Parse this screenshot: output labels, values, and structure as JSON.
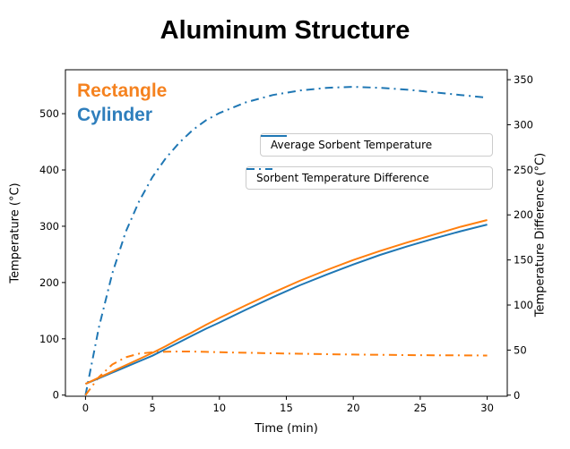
{
  "window": {
    "title": "Aluminum Structure"
  },
  "annotations": {
    "rectangle": {
      "label": "Rectangle",
      "color": "#f5821f"
    },
    "cylinder": {
      "label": "Cylinder",
      "color": "#2e7ebc"
    }
  },
  "legend": {
    "average": {
      "label": "Average Sorbent Temperature",
      "line_style": "solid",
      "line_color": "#1f77b4"
    },
    "difference": {
      "label": "Sorbent Temperature Difference",
      "line_style": "dashdot",
      "line_color": "#1f77b4"
    }
  },
  "chart_data": {
    "type": "line",
    "title": "Aluminum Structure",
    "xlabel": "Time (min)",
    "ylabel_left": "Temperature (°C)",
    "ylabel_right": "Temperature Difference (°C)",
    "xlim": [
      -1.5,
      31.5
    ],
    "xticks": [
      0,
      5,
      10,
      15,
      20,
      25,
      30
    ],
    "ylim_left": [
      -2,
      578
    ],
    "yticks_left": [
      0,
      100,
      200,
      300,
      400,
      500
    ],
    "ylim_right": [
      -1.2,
      361
    ],
    "yticks_right": [
      0,
      50,
      100,
      150,
      200,
      250,
      300,
      350
    ],
    "grid": false,
    "legend_position": "upper right, two separate boxes",
    "x": [
      0,
      1,
      2,
      3,
      4,
      5,
      6,
      7,
      8,
      9,
      10,
      12,
      14,
      16,
      18,
      20,
      22,
      24,
      26,
      28,
      30
    ],
    "series": [
      {
        "name": "Cylinder Sorbent Temperature Difference",
        "axis": "right",
        "color": "#1f77b4",
        "style": "dashdot",
        "values": [
          0,
          75,
          135,
          181,
          215,
          242,
          263,
          280,
          294,
          305,
          313,
          325,
          333,
          338,
          341,
          342,
          341,
          339,
          336,
          333,
          330
        ]
      },
      {
        "name": "Rectangle Sorbent Temperature Difference",
        "axis": "right",
        "color": "#ff7f0e",
        "style": "dashdot",
        "values": [
          0,
          20,
          34,
          42,
          46,
          47.5,
          48.2,
          48.5,
          48.3,
          48,
          47.6,
          47,
          46.4,
          45.9,
          45.4,
          45,
          44.7,
          44.4,
          44.2,
          44.1,
          44
        ]
      },
      {
        "name": "Cylinder Average Sorbent Temperature",
        "axis": "left",
        "color": "#1f77b4",
        "style": "solid",
        "values": [
          20,
          30,
          40,
          50,
          60,
          70,
          82,
          94,
          106,
          118,
          129,
          152,
          174,
          195,
          214,
          232,
          249,
          264,
          278,
          291,
          303
        ]
      },
      {
        "name": "Rectangle Average Sorbent Temperature",
        "axis": "left",
        "color": "#ff7f0e",
        "style": "solid",
        "values": [
          20,
          31,
          42,
          53,
          64,
          75,
          87,
          100,
          112,
          125,
          137,
          160,
          182,
          203,
          222,
          240,
          256,
          271,
          285,
          299,
          311
        ]
      }
    ]
  }
}
